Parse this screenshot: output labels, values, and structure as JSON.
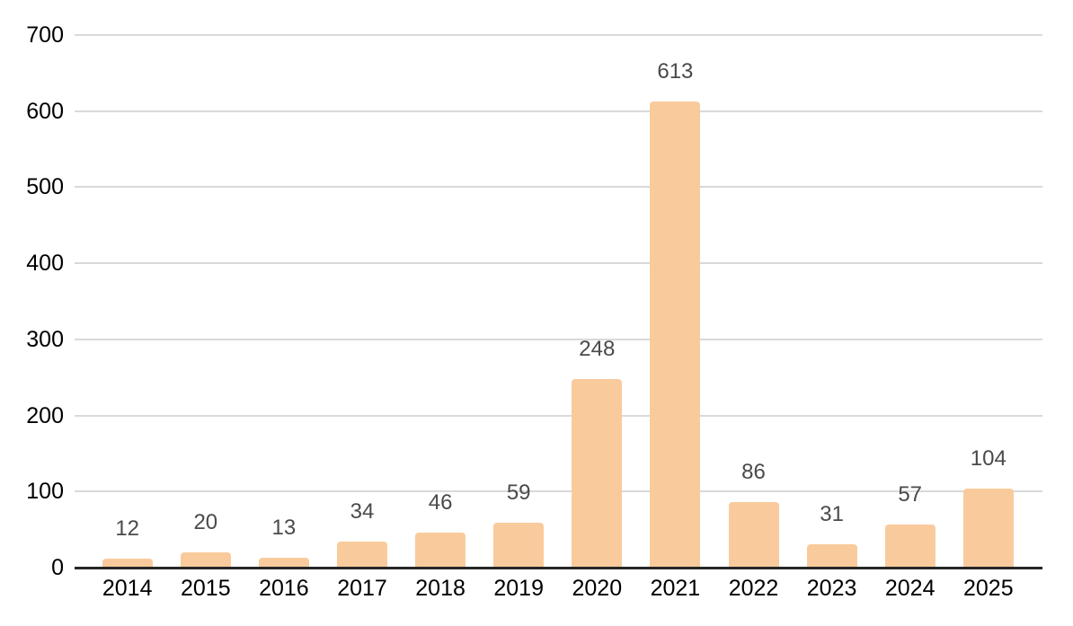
{
  "chart_data": {
    "type": "bar",
    "categories": [
      "2014",
      "2015",
      "2016",
      "2017",
      "2018",
      "2019",
      "2020",
      "2021",
      "2022",
      "2023",
      "2024",
      "2025"
    ],
    "values": [
      12,
      20,
      13,
      34,
      46,
      59,
      248,
      613,
      86,
      31,
      57,
      104
    ],
    "ylim": [
      0,
      700
    ],
    "yticks": [
      0,
      100,
      200,
      300,
      400,
      500,
      600,
      700
    ],
    "grid": true,
    "legend": "none",
    "data_labels_shown": true,
    "colors": {
      "bar": "#f9cb9c",
      "gridline": "#d9d9d9",
      "axis_line": "#262626",
      "axis_label": "#000000",
      "data_label": "#4a4a4a",
      "background": "#ffffff"
    }
  }
}
